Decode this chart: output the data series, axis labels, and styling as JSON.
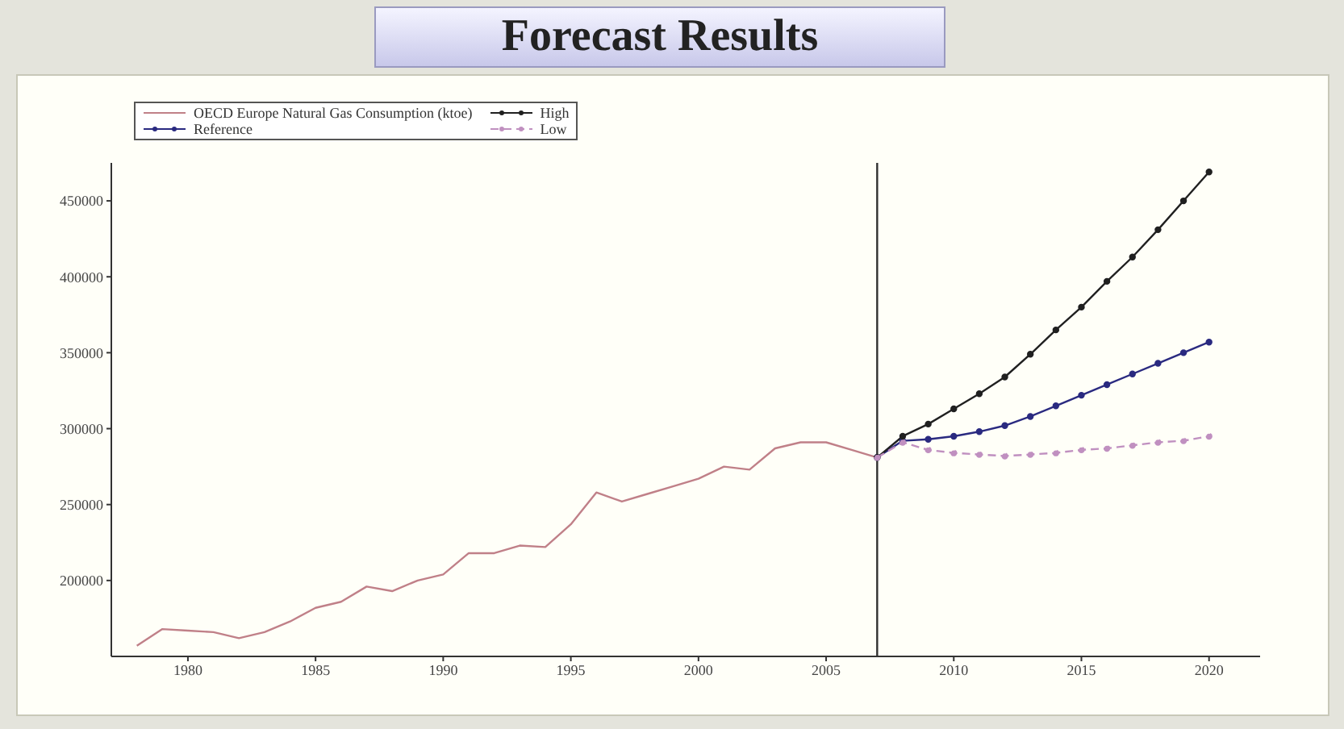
{
  "chart_data": {
    "type": "line",
    "title": "Forecast Results",
    "xlim": [
      1977,
      2022
    ],
    "xticks": [
      1980,
      1985,
      1990,
      1995,
      2000,
      2005,
      2010,
      2015,
      2020
    ],
    "ylim": [
      150000,
      475000
    ],
    "yticks": [
      200000,
      250000,
      300000,
      350000,
      400000,
      450000
    ],
    "legend": "top left",
    "ref_lines": [
      {
        "axis": "x",
        "value": 2007,
        "color": "#303030"
      }
    ],
    "series": [
      {
        "name": "OECD Europe Natural Gas Consumption (ktoe)",
        "color": "#c08088",
        "marker": "none",
        "line_style": "solid",
        "x": [
          1978,
          1979,
          1980,
          1981,
          1982,
          1983,
          1984,
          1985,
          1986,
          1987,
          1988,
          1989,
          1990,
          1991,
          1992,
          1993,
          1994,
          1995,
          1996,
          1997,
          1998,
          1999,
          2000,
          2001,
          2002,
          2003,
          2004,
          2005,
          2006,
          2007
        ],
        "values": [
          157000,
          168000,
          167000,
          166000,
          162000,
          166000,
          173000,
          182000,
          186000,
          196000,
          193000,
          200000,
          204000,
          218000,
          218000,
          223000,
          222000,
          237000,
          258000,
          252000,
          257000,
          262000,
          267000,
          275000,
          273000,
          287000,
          291000,
          291000,
          286000,
          281000
        ]
      },
      {
        "name": "Reference",
        "color": "#2a2a80",
        "marker": "circle",
        "line_style": "solid",
        "x": [
          2007,
          2008,
          2009,
          2010,
          2011,
          2012,
          2013,
          2014,
          2015,
          2016,
          2017,
          2018,
          2019,
          2020
        ],
        "values": [
          281000,
          292000,
          293000,
          295000,
          298000,
          302000,
          308000,
          315000,
          322000,
          329000,
          336000,
          343000,
          350000,
          357000
        ]
      },
      {
        "name": "High",
        "color": "#202020",
        "marker": "circle",
        "line_style": "solid",
        "x": [
          2007,
          2008,
          2009,
          2010,
          2011,
          2012,
          2013,
          2014,
          2015,
          2016,
          2017,
          2018,
          2019,
          2020
        ],
        "values": [
          281000,
          295000,
          303000,
          313000,
          323000,
          334000,
          349000,
          365000,
          380000,
          397000,
          413000,
          431000,
          450000,
          469000
        ]
      },
      {
        "name": "Low",
        "color": "#c090c0",
        "marker": "circle",
        "line_style": "dashed",
        "x": [
          2007,
          2008,
          2009,
          2010,
          2011,
          2012,
          2013,
          2014,
          2015,
          2016,
          2017,
          2018,
          2019,
          2020
        ],
        "values": [
          281000,
          291000,
          286000,
          284000,
          283000,
          282000,
          283000,
          284000,
          286000,
          287000,
          289000,
          291000,
          292000,
          295000
        ]
      }
    ]
  }
}
